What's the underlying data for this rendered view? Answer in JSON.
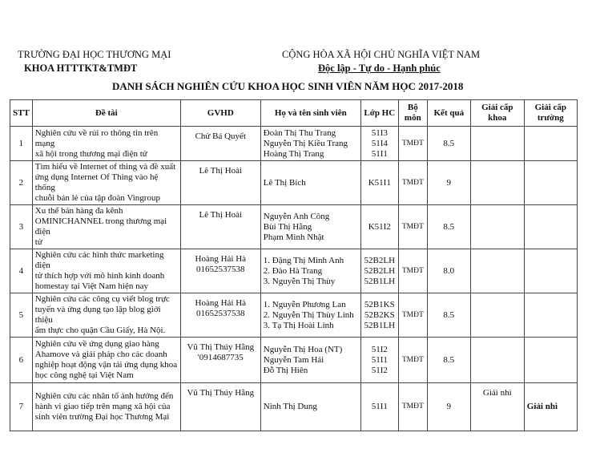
{
  "header": {
    "university": "TRƯỜNG ĐẠI HỌC THƯƠNG MẠI",
    "faculty": "KHOA HTTTKT&TMĐT",
    "country": "CỘNG HÒA XÃ HỘI CHỦ NGHĨA VIỆT NAM",
    "motto": "Độc lập - Tự do - Hạnh phúc",
    "title": "DANH SÁCH NGHIÊN CỨU KHOA HỌC SINH VIÊN NĂM HỌC 2017-2018"
  },
  "table": {
    "columns": [
      "STT",
      "Đề tài",
      "GVHD",
      "Họ và tên sinh viên",
      "Lớp HC",
      "Bộ\nmôn",
      "Kết quả",
      "Giải cấp khoa",
      "Giải cấp\ntrường"
    ],
    "rows": [
      {
        "stt": "1",
        "topic": "Nghiên cứu về rủi ro thông tin trên mạng\nxã hội trong thương mại điện tử",
        "gvhd": "Chử Bá Quyết",
        "students": "Đoàn Thị Thu Trang\nNguyễn Thị Kiều Trang\nHoàng Thị Trang",
        "class": "51I3\n51I4\n51I1",
        "dept": "TMĐT",
        "result": "8.5",
        "faculty_prize": "",
        "school_prize": ""
      },
      {
        "stt": "2",
        "topic": "Tìm hiểu về Internet of thing và đề xuất\nứng dụng Internet Of Thing vào hệ thống\nchuỗi bán lẻ của tập đoàn Vingroup",
        "gvhd": "Lê Thị Hoài",
        "students": "Lê Thị Bích",
        "class": "K51I1",
        "dept": "TMĐT",
        "result": "9",
        "faculty_prize": "",
        "school_prize": ""
      },
      {
        "stt": "3",
        "topic": "Xu thế bán hàng đa kênh\nOMINICHANNEL trong thương mại điện\ntử",
        "gvhd": "Lê Thị Hoài",
        "students": "Nguyễn Anh Công\nBùi Thị Hằng\nPhạm Minh Nhật",
        "class": "K51I2",
        "dept": "TMĐT",
        "result": "8.5",
        "faculty_prize": "",
        "school_prize": ""
      },
      {
        "stt": "4",
        "topic": "Nghiên cứu các hình thức marketing điện\ntử thích hợp với mô hình kinh doanh\nhomestay tại Việt Nam hiện nay",
        "gvhd": "Hoàng Hải Hà\n01652537538",
        "students": "1. Đặng Thị Minh Anh\n2. Đào Hà Trang\n3. Nguyễn Thị Thùy",
        "class": "52B2LH\n52B2LH\n52B1LH",
        "dept": "TMĐT",
        "result": "8.0",
        "faculty_prize": "",
        "school_prize": ""
      },
      {
        "stt": "5",
        "topic": "Nghiên cứu các công cụ viết blog trực\ntuyến và ứng dụng tạo lập blog giới thiệu\nẩm thực cho quận Cầu Giấy, Hà Nội.",
        "gvhd": "Hoàng Hải Hà\n01652537538",
        "students": "1. Nguyễn Phương Lan\n2. Nguyễn Thị Thùy Linh\n3. Tạ Thị Hoài Linh",
        "class": "52B1KS\n52B2KS\n52B1LH",
        "dept": "TMĐT",
        "result": "8.5",
        "faculty_prize": "",
        "school_prize": ""
      },
      {
        "stt": "6",
        "topic": "Nghiên cứu về ứng dụng giao hàng\nAhamove và giải pháp cho các doanh\nnghiệp hoạt động vận tải ứng dụng khoa\nhọc công nghệ tại Việt Nam",
        "gvhd": "Vũ Thị Thúy Hằng\n'0914687735",
        "students": "Nguyễn Thị Hoa (NT)\nNguyễn Tam Hải\nĐỗ Thị Hiên",
        "class": "51I2\n51I1\n51I2",
        "dept": "TMĐT",
        "result": "8.5",
        "faculty_prize": "",
        "school_prize": ""
      },
      {
        "stt": "7",
        "topic": "Nghiên cứu các nhân tố ảnh hưởng đến\nhành vi giao tiếp trên mạng xã hội của\nsinh viên trường Đại học Thương Mại",
        "gvhd": "Vũ Thị Thúy Hằng",
        "students": "Ninh Thị Dung",
        "class": "51I1",
        "dept": "TMĐT",
        "result": "9",
        "faculty_prize": "Giải nhì",
        "school_prize": "Giải nhì"
      }
    ]
  }
}
